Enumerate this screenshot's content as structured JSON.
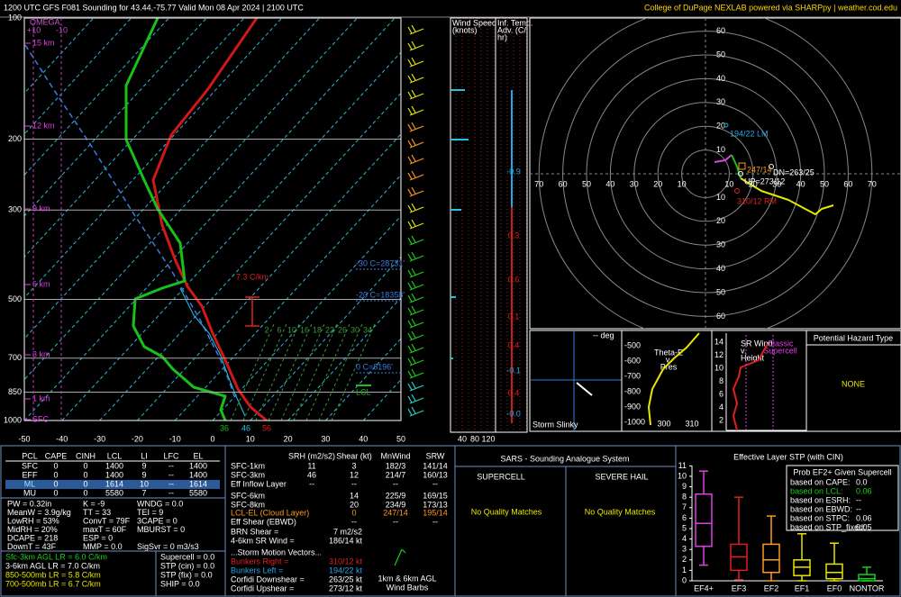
{
  "header": {
    "title": "1200 UTC GFS F081 Sounding for 43.44,-75.77 Valid  Mon 08 Apr 2024 | 2100 UTC",
    "credit": "College of DuPage NEXLAB powered via SHARPpy | weather.cod.edu"
  },
  "skewt": {
    "omega": "OMEGA",
    "omega_ticks": [
      "+10",
      "-10"
    ],
    "pressure_ticks": [
      100,
      200,
      300,
      500,
      700,
      850,
      1000
    ],
    "temperature_ticks": [
      -50,
      -40,
      -30,
      -20,
      -10,
      0,
      10,
      20,
      30,
      40,
      50
    ],
    "height_labels": [
      "15 km",
      "12 km",
      "9 km",
      "6 km",
      "3 km",
      "1 km",
      "SFC"
    ],
    "lapse_rate": "7.3 C/km",
    "levels": [
      "-30 C=28731'",
      "-20 C=18358'",
      "0 C=8196'"
    ],
    "lcl": "LCL",
    "mixing_ratios": [
      "2",
      "6",
      "10",
      "16",
      "18",
      "22",
      "26",
      "30",
      "34"
    ],
    "surface": [
      "36",
      "46",
      "56"
    ]
  },
  "wind_speed": {
    "title": [
      "Wind Speed",
      "(knots)"
    ],
    "ticks": [
      "40",
      "80",
      "120"
    ]
  },
  "advection": {
    "title": [
      "Inf. Temp.",
      "Adv. (C/",
      "hr)"
    ],
    "values": [
      "-0.9",
      "0.3",
      "0.6",
      "0.1",
      "0.4",
      "-0.1",
      "0.4",
      "-0.0"
    ]
  },
  "hodograph": {
    "ring_ticks": [
      10,
      20,
      30,
      40,
      50,
      60,
      70
    ],
    "vertical_ticks": [
      10,
      20,
      30,
      40,
      50,
      60
    ],
    "labels": {
      "lm": "194/22 LM",
      "mean": "247/14",
      "dn": "DN=263/25",
      "up": "UP=273/12",
      "rm": "310/12 RM"
    }
  },
  "slinky": {
    "deg": "-- deg",
    "title": "Storm Slinky"
  },
  "theta_e": {
    "title": [
      "Theta-E",
      "v.",
      "Pres"
    ],
    "yticks": [
      "-500",
      "-600",
      "-700",
      "-800",
      "-900",
      "-1000"
    ],
    "xticks": [
      "300",
      "310"
    ]
  },
  "sr_wind": {
    "title": [
      "SR Wind",
      "v.",
      "Height"
    ],
    "yticks": [
      "14",
      "12",
      "10",
      "8",
      "6",
      "4",
      "2"
    ],
    "note": [
      "Classic",
      "Supercell"
    ]
  },
  "hazard": {
    "title": "Potential Hazard Type",
    "value": "NONE"
  },
  "parcels": {
    "header": [
      "PCL",
      "CAPE",
      "CINH",
      "LCL",
      "LI",
      "LFC",
      "EL"
    ],
    "rows": [
      [
        "SFC",
        "0",
        "0",
        "1400",
        "9",
        "--",
        "1400"
      ],
      [
        "EFF",
        "0",
        "0",
        "1400",
        "9",
        "--",
        "1400"
      ],
      [
        "ML",
        "0",
        "0",
        "1614",
        "10",
        "--",
        "1614"
      ],
      [
        "MU",
        "0",
        "0",
        "5580",
        "7",
        "--",
        "5580"
      ]
    ]
  },
  "indices": [
    [
      "PW = 0.32in",
      "K = -9",
      "WNDG = 0.0"
    ],
    [
      "MeanW = 3.9g/kg",
      "TT = 33",
      "TEI = 9"
    ],
    [
      "LowRH = 53%",
      "ConvT = 79F",
      "3CAPE = 0"
    ],
    [
      "MidRH = 20%",
      "maxT = 60F",
      "MBURST = 0"
    ],
    [
      "DCAPE = 218",
      "ESP = 0"
    ],
    [
      "DownT = 43F",
      "MMP = 0.0",
      "SigSvr = 0 m3/s3"
    ]
  ],
  "lapse_rates": [
    "Sfc-3km AGL LR = 6.0 C/km",
    "3-6km AGL LR = 7.0 C/km",
    "850-500mb LR = 5.8 C/km",
    "700-500mb LR = 6.7 C/km"
  ],
  "composites": [
    "Supercell = 0.0",
    "STP (cin) = 0.0",
    "STP (fix) = 0.0",
    "SHIP = 0.0"
  ],
  "kinematics": {
    "header": {
      "srh": "SRH (m2/s2)",
      "shear": "Shear (kt)",
      "mnwind": "MnWind",
      "srw": "SRW"
    },
    "rows": [
      {
        "label": "SFC-1km",
        "srh": "11",
        "shear": "3",
        "mnwind": "182/3",
        "srw": "141/14"
      },
      {
        "label": "SFC-3km",
        "srh": "46",
        "shear": "12",
        "mnwind": "214/7",
        "srw": "160/13"
      },
      {
        "label": "Eff Inflow Layer",
        "srh": "--",
        "shear": "--",
        "mnwind": "--",
        "srw": "--"
      },
      {
        "label": "SFC-6km",
        "shear": "14",
        "mnwind": "225/9",
        "srw": "169/15"
      },
      {
        "label": "SFC-8km",
        "shear": "20",
        "mnwind": "234/9",
        "srw": "173/13"
      },
      {
        "label": "LCL-EL (Cloud Layer)",
        "shear": "0",
        "mnwind": "247/14",
        "srw": "195/14"
      },
      {
        "label": "Eff Shear (EBWD)",
        "shear": "--",
        "mnwind": "--",
        "srw": "--"
      }
    ],
    "brn": [
      "BRN Shear =",
      "7 m2/s2"
    ],
    "sr_46": [
      "4-6km SR Wind =",
      "186/14 kt"
    ],
    "vectors_title": "...Storm Motion Vectors...",
    "vectors": [
      [
        "Bunkers Right =",
        "310/12 kt"
      ],
      [
        "Bunkers Left =",
        "194/22 kt"
      ],
      [
        "Corfidi Downshear =",
        "263/25 kt"
      ],
      [
        "Corfidi Upshear =",
        "273/12 kt"
      ]
    ],
    "barbs_note": [
      "1km & 6km AGL",
      "Wind Barbs"
    ]
  },
  "sars": {
    "title": "SARS - Sounding Analogue System",
    "supercell": "SUPERCELL",
    "hail": "SEVERE HAIL",
    "supercell_result": "No Quality Matches",
    "hail_result": "No Quality Matches"
  },
  "stp": {
    "title": "Effective Layer STP (with CIN)",
    "yticks": [
      0,
      1,
      2,
      3,
      4,
      5,
      6,
      7,
      8,
      9,
      10,
      11
    ],
    "categories": [
      "EF4+",
      "EF3",
      "EF2",
      "EF1",
      "EF0",
      "NONTOR"
    ],
    "boxes": [
      [
        1.5,
        3.3,
        5.5,
        8.3,
        10.5
      ],
      [
        0.1,
        1.0,
        2.3,
        3.5,
        8.0
      ],
      [
        0,
        0.8,
        2.0,
        3.5,
        6.2
      ],
      [
        0,
        0.5,
        1.3,
        2.0,
        4.5
      ],
      [
        0,
        0.2,
        0.8,
        1.6,
        3.6
      ],
      [
        0,
        0,
        0.2,
        0.6,
        1.3
      ]
    ],
    "prob_title": "Prob EF2+ Given Supercell",
    "prob": [
      [
        "based on CAPE:",
        "0.0"
      ],
      [
        "based on LCL:",
        "0.06"
      ],
      [
        "based on ESRH:",
        "--"
      ],
      [
        "based on EBWD:",
        "--"
      ],
      [
        "based on STPC:",
        "0.06"
      ],
      [
        "based on STP_fixed:",
        "0.05"
      ]
    ]
  }
}
